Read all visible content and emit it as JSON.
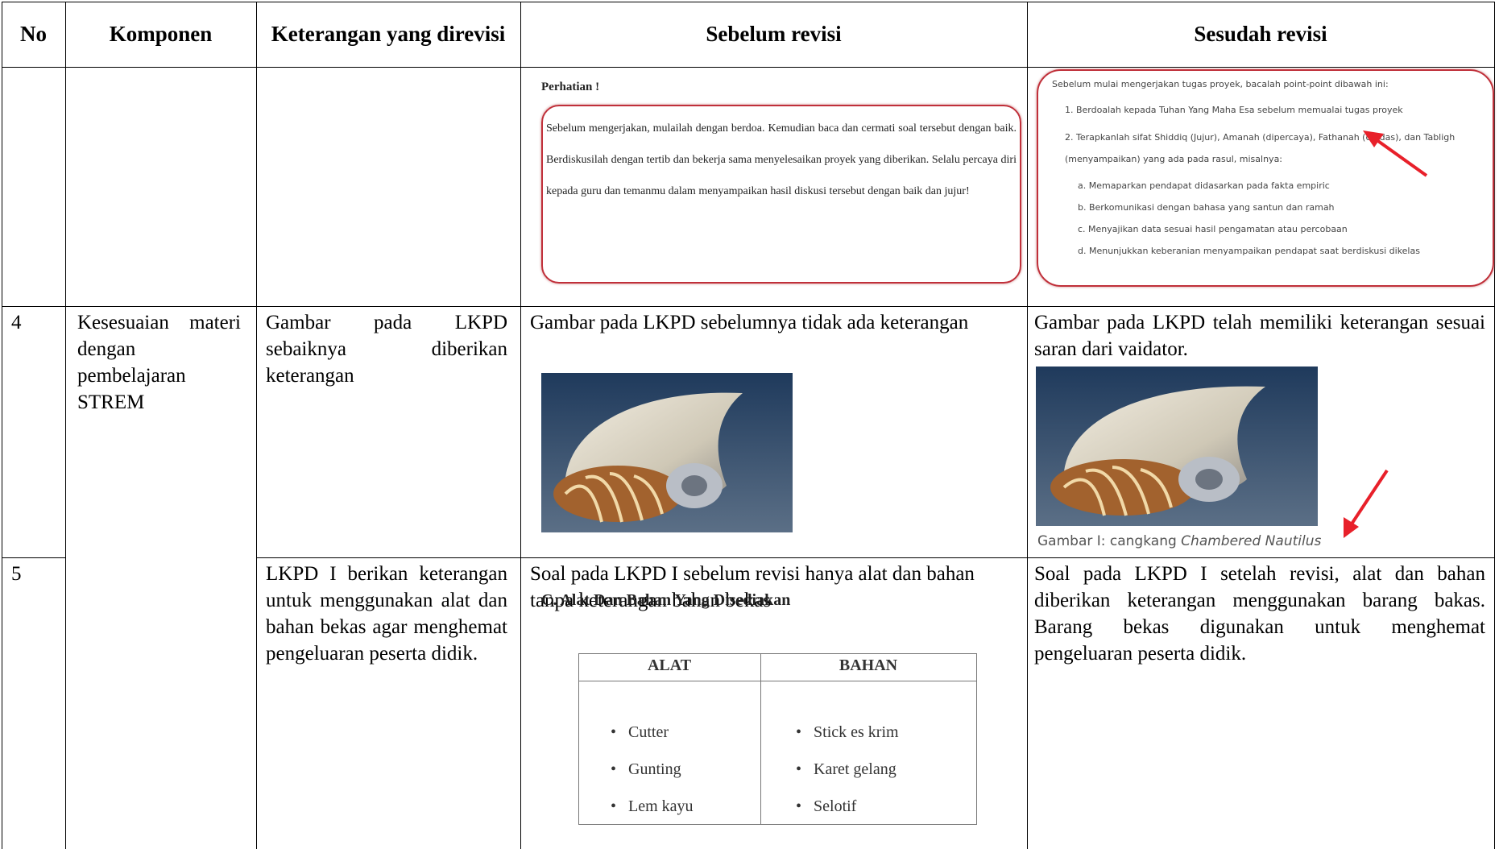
{
  "table": {
    "header": [
      "No",
      "Komponen",
      "Keterangan yang direvisi",
      "Sebelum revisi",
      "Sesudah revisi"
    ],
    "rows": [
      {
        "before_figure": {
          "title": "Perhatian !",
          "text": "Sebelum mengerjakan, mulailah dengan berdoa. Kemudian baca dan cermati soal tersebut dengan baik. Berdiskusilah dengan tertib dan bekerja sama menyelesaikan proyek yang diberikan. Selalu percaya diri kepada guru dan temanmu dalam menyampaikan hasil diskusi tersebut dengan baik dan jujur!"
        },
        "after_figure": {
          "intro": "Sebelum mulai mengerjakan tugas proyek, bacalah point-point dibawah ini:",
          "items": [
            "1. Berdoalah kepada Tuhan Yang Maha Esa sebelum memualai tugas proyek",
            "2. Terapkanlah sifat Shiddiq (Jujur), Amanah (dipercaya), Fathanah (cerdas), dan Tabligh (menyampaikan) yang ada pada rasul, misalnya:"
          ],
          "subitems": [
            "a. Memaparkan pendapat didasarkan pada fakta empiric",
            "b. Berkomunikasi dengan bahasa yang santun dan ramah",
            "c. Menyajikan data sesuai hasil pengamatan atau percobaan",
            "d. Menunjukkan keberanian menyampaikan pendapat saat berdiskusi dikelas"
          ]
        }
      },
      {
        "no": "4",
        "component": "Kesesuaian materi dengan pembelajaran STREM",
        "revised": "Gambar pada LKPD sebaiknya diberikan keterangan",
        "before": "Gambar pada LKPD sebelumnya tidak ada keterangan",
        "after": "Gambar pada LKPD telah memiliki keterangan sesuai saran dari vaidator.",
        "after_caption": "Gambar I: cangkang",
        "after_caption_italic": "Chambered Nautilus"
      },
      {
        "no": "5",
        "revised": "LKPD I berikan keterangan untuk menggunakan alat dan bahan bekas agar menghemat pengeluaran peserta didik.",
        "before": "Soal pada LKPD I sebelum revisi hanya alat dan bahan tanpa keterangan bahan bekas",
        "after": "Soal pada LKPD I setelah revisi, alat dan bahan diberikan keterangan menggunakan barang bakas. Barang bekas digunakan untuk menghemat pengeluaran peserta didik.",
        "before_figure": {
          "title": "C. Alat Dan Bahan Yang Disediakan",
          "columns": [
            "ALAT",
            "BAHAN"
          ],
          "rows": [
            [
              "Cutter",
              "Stick es krim"
            ],
            [
              "Gunting",
              "Karet gelang"
            ],
            [
              "Lem kayu",
              "Selotif"
            ]
          ]
        }
      }
    ]
  }
}
